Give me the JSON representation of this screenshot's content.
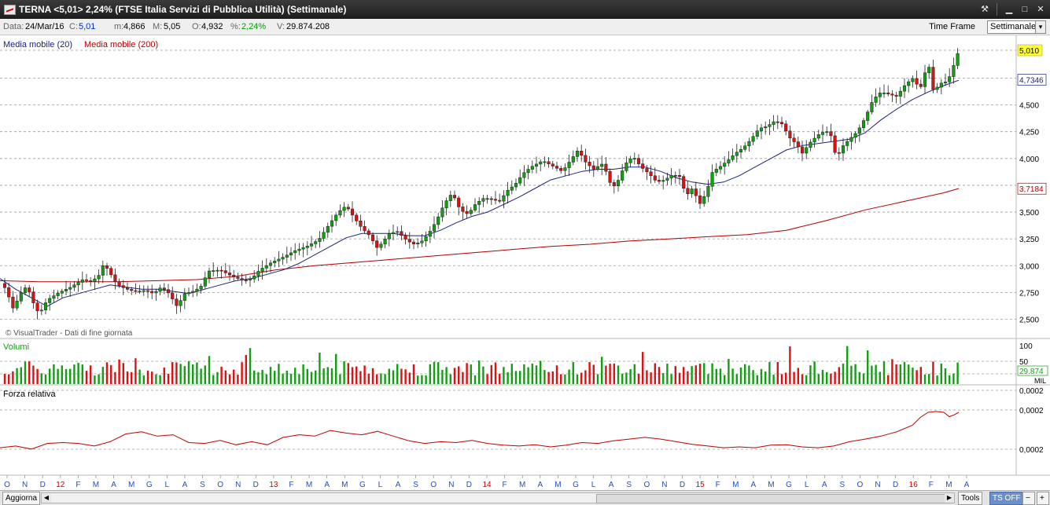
{
  "window": {
    "title": "TERNA <5,01> 2,24%  (FTSE Italia Servizi di Pubblica Utilità)  (Settimanale)"
  },
  "infobar": {
    "data_label": "Data:",
    "data_value": "24/Mar/16",
    "close_label": "C:",
    "close_value": "5,01",
    "min_label": "m:",
    "min_value": "4,866",
    "max_label": "M:",
    "max_value": "5,05",
    "open_label": "O:",
    "open_value": "4,932",
    "pct_label": "%:",
    "pct_value": "2,24%",
    "vol_label": "V:",
    "vol_value": "29.874.208",
    "timeframe_label": "Time Frame",
    "timeframe_value": "Settimanale"
  },
  "price_panel": {
    "legend_ma20": "Media mobile (20)",
    "legend_ma200": "Media mobile (200)",
    "watermark": "© VisualTrader - Dati di fine giornata",
    "price_axis": [
      "5,010",
      "4,7346",
      "4,500",
      "4,250",
      "4,000",
      "3,7184",
      "3,500",
      "3,250",
      "3,000",
      "2,750",
      "2,500"
    ],
    "last_price_label": "5,010",
    "ma20_label": "4,7346",
    "ma200_label": "3,7184"
  },
  "volume_panel": {
    "title": "Volumi",
    "axis": [
      "100",
      "50"
    ],
    "last_label": "29.874",
    "unit": "MIL"
  },
  "rs_panel": {
    "title": "Forza relativa",
    "axis": [
      "0,0002",
      "0,0002",
      "0,0002"
    ]
  },
  "x_axis": [
    "O",
    "N",
    "D",
    "12",
    "F",
    "M",
    "A",
    "M",
    "G",
    "L",
    "A",
    "S",
    "O",
    "N",
    "D",
    "13",
    "F",
    "M",
    "A",
    "M",
    "G",
    "L",
    "A",
    "S",
    "O",
    "N",
    "D",
    "14",
    "F",
    "M",
    "A",
    "M",
    "G",
    "L",
    "A",
    "S",
    "O",
    "N",
    "D",
    "15",
    "F",
    "M",
    "A",
    "M",
    "G",
    "L",
    "A",
    "S",
    "O",
    "N",
    "D",
    "16",
    "F",
    "M",
    "A"
  ],
  "footer": {
    "update_button": "Aggiorna",
    "tools_button": "Tools",
    "ts_button": "TS OFF"
  },
  "colors": {
    "up": "#10a010",
    "down": "#e01010",
    "ma20": "#1a237e",
    "ma200": "#b00000",
    "rs_line": "#c00000",
    "year_label": "#cc0000",
    "month_label": "#1f4fbf"
  },
  "chart_data": [
    {
      "type": "candlestick",
      "title": "TERNA (Settimanale)",
      "ylim": [
        2.4,
        5.1
      ],
      "price_points": [
        [
          0,
          2.84
        ],
        [
          8,
          2.78
        ],
        [
          16,
          2.6
        ],
        [
          24,
          2.7
        ],
        [
          30,
          2.8
        ],
        [
          36,
          2.78
        ],
        [
          44,
          2.62
        ],
        [
          50,
          2.55
        ],
        [
          60,
          2.68
        ],
        [
          75,
          2.75
        ],
        [
          90,
          2.8
        ],
        [
          105,
          2.87
        ],
        [
          115,
          2.85
        ],
        [
          125,
          2.9
        ],
        [
          132,
          3.02
        ],
        [
          140,
          2.93
        ],
        [
          148,
          2.83
        ],
        [
          155,
          2.8
        ],
        [
          165,
          2.77
        ],
        [
          175,
          2.76
        ],
        [
          185,
          2.77
        ],
        [
          195,
          2.74
        ],
        [
          205,
          2.8
        ],
        [
          215,
          2.74
        ],
        [
          225,
          2.62
        ],
        [
          235,
          2.74
        ],
        [
          245,
          2.76
        ],
        [
          255,
          2.8
        ],
        [
          265,
          2.95
        ],
        [
          280,
          2.96
        ],
        [
          295,
          2.9
        ],
        [
          310,
          2.86
        ],
        [
          320,
          2.88
        ],
        [
          330,
          2.96
        ],
        [
          345,
          3.03
        ],
        [
          360,
          3.08
        ],
        [
          375,
          3.14
        ],
        [
          390,
          3.18
        ],
        [
          405,
          3.24
        ],
        [
          418,
          3.38
        ],
        [
          430,
          3.5
        ],
        [
          440,
          3.56
        ],
        [
          450,
          3.45
        ],
        [
          460,
          3.35
        ],
        [
          470,
          3.28
        ],
        [
          480,
          3.16
        ],
        [
          495,
          3.3
        ],
        [
          505,
          3.32
        ],
        [
          515,
          3.25
        ],
        [
          525,
          3.2
        ],
        [
          535,
          3.22
        ],
        [
          545,
          3.3
        ],
        [
          555,
          3.42
        ],
        [
          565,
          3.58
        ],
        [
          575,
          3.68
        ],
        [
          585,
          3.52
        ],
        [
          595,
          3.48
        ],
        [
          605,
          3.58
        ],
        [
          615,
          3.63
        ],
        [
          625,
          3.62
        ],
        [
          635,
          3.6
        ],
        [
          645,
          3.7
        ],
        [
          655,
          3.76
        ],
        [
          665,
          3.86
        ],
        [
          675,
          3.92
        ],
        [
          690,
          3.98
        ],
        [
          705,
          3.92
        ],
        [
          715,
          3.88
        ],
        [
          725,
          3.98
        ],
        [
          735,
          4.08
        ],
        [
          745,
          3.96
        ],
        [
          755,
          3.9
        ],
        [
          765,
          3.95
        ],
        [
          772,
          3.86
        ],
        [
          778,
          3.72
        ],
        [
          785,
          3.78
        ],
        [
          795,
          3.95
        ],
        [
          805,
          4.02
        ],
        [
          815,
          3.92
        ],
        [
          825,
          3.86
        ],
        [
          835,
          3.78
        ],
        [
          845,
          3.8
        ],
        [
          855,
          3.85
        ],
        [
          865,
          3.83
        ],
        [
          872,
          3.65
        ],
        [
          880,
          3.72
        ],
        [
          890,
          3.58
        ],
        [
          898,
          3.68
        ],
        [
          906,
          3.88
        ],
        [
          915,
          3.92
        ],
        [
          925,
          3.98
        ],
        [
          935,
          4.05
        ],
        [
          945,
          4.1
        ],
        [
          955,
          4.18
        ],
        [
          965,
          4.28
        ],
        [
          975,
          4.3
        ],
        [
          985,
          4.35
        ],
        [
          995,
          4.32
        ],
        [
          1003,
          4.2
        ],
        [
          1012,
          4.14
        ],
        [
          1020,
          4.05
        ],
        [
          1030,
          4.15
        ],
        [
          1040,
          4.22
        ],
        [
          1050,
          4.26
        ],
        [
          1058,
          4.2
        ],
        [
          1063,
          4.0
        ],
        [
          1072,
          4.12
        ],
        [
          1080,
          4.18
        ],
        [
          1090,
          4.25
        ],
        [
          1100,
          4.38
        ],
        [
          1110,
          4.55
        ],
        [
          1120,
          4.62
        ],
        [
          1130,
          4.6
        ],
        [
          1140,
          4.58
        ],
        [
          1150,
          4.68
        ],
        [
          1160,
          4.75
        ],
        [
          1170,
          4.65
        ],
        [
          1180,
          4.9
        ],
        [
          1187,
          4.62
        ],
        [
          1195,
          4.7
        ],
        [
          1205,
          4.72
        ],
        [
          1213,
          4.88
        ],
        [
          1219,
          5.01
        ]
      ],
      "ma20_points": [
        [
          0,
          2.88
        ],
        [
          20,
          2.78
        ],
        [
          40,
          2.7
        ],
        [
          60,
          2.62
        ],
        [
          80,
          2.7
        ],
        [
          100,
          2.74
        ],
        [
          120,
          2.78
        ],
        [
          140,
          2.82
        ],
        [
          160,
          2.8
        ],
        [
          180,
          2.78
        ],
        [
          200,
          2.78
        ],
        [
          220,
          2.76
        ],
        [
          240,
          2.74
        ],
        [
          260,
          2.78
        ],
        [
          280,
          2.82
        ],
        [
          300,
          2.86
        ],
        [
          320,
          2.88
        ],
        [
          340,
          2.92
        ],
        [
          360,
          2.96
        ],
        [
          380,
          3.02
        ],
        [
          400,
          3.1
        ],
        [
          420,
          3.18
        ],
        [
          440,
          3.26
        ],
        [
          460,
          3.3
        ],
        [
          480,
          3.3
        ],
        [
          500,
          3.3
        ],
        [
          520,
          3.28
        ],
        [
          540,
          3.28
        ],
        [
          560,
          3.33
        ],
        [
          580,
          3.4
        ],
        [
          600,
          3.46
        ],
        [
          620,
          3.5
        ],
        [
          640,
          3.57
        ],
        [
          660,
          3.64
        ],
        [
          680,
          3.72
        ],
        [
          700,
          3.8
        ],
        [
          720,
          3.84
        ],
        [
          740,
          3.88
        ],
        [
          760,
          3.9
        ],
        [
          780,
          3.9
        ],
        [
          800,
          3.92
        ],
        [
          820,
          3.92
        ],
        [
          840,
          3.88
        ],
        [
          860,
          3.82
        ],
        [
          880,
          3.78
        ],
        [
          900,
          3.76
        ],
        [
          920,
          3.78
        ],
        [
          940,
          3.84
        ],
        [
          960,
          3.92
        ],
        [
          980,
          4.0
        ],
        [
          1000,
          4.08
        ],
        [
          1020,
          4.12
        ],
        [
          1040,
          4.14
        ],
        [
          1060,
          4.16
        ],
        [
          1080,
          4.18
        ],
        [
          1100,
          4.24
        ],
        [
          1120,
          4.36
        ],
        [
          1140,
          4.46
        ],
        [
          1160,
          4.55
        ],
        [
          1180,
          4.62
        ],
        [
          1200,
          4.68
        ],
        [
          1219,
          4.73
        ]
      ],
      "ma200_points": [
        [
          0,
          2.86
        ],
        [
          50,
          2.85
        ],
        [
          100,
          2.85
        ],
        [
          150,
          2.85
        ],
        [
          200,
          2.86
        ],
        [
          250,
          2.87
        ],
        [
          300,
          2.9
        ],
        [
          350,
          2.96
        ],
        [
          400,
          3.0
        ],
        [
          450,
          3.03
        ],
        [
          500,
          3.06
        ],
        [
          550,
          3.09
        ],
        [
          600,
          3.12
        ],
        [
          650,
          3.15
        ],
        [
          700,
          3.18
        ],
        [
          750,
          3.2
        ],
        [
          800,
          3.23
        ],
        [
          850,
          3.25
        ],
        [
          900,
          3.27
        ],
        [
          950,
          3.29
        ],
        [
          1000,
          3.33
        ],
        [
          1050,
          3.42
        ],
        [
          1100,
          3.52
        ],
        [
          1150,
          3.6
        ],
        [
          1200,
          3.68
        ],
        [
          1219,
          3.72
        ]
      ]
    },
    {
      "type": "bar",
      "title": "Volumi",
      "ylim": [
        0,
        100
      ],
      "last_value": 29.874
    },
    {
      "type": "line",
      "title": "Forza relativa",
      "points": [
        [
          0,
          0.18
        ],
        [
          20,
          0.22
        ],
        [
          40,
          0.15
        ],
        [
          60,
          0.28
        ],
        [
          80,
          0.3
        ],
        [
          100,
          0.28
        ],
        [
          120,
          0.22
        ],
        [
          140,
          0.32
        ],
        [
          160,
          0.5
        ],
        [
          180,
          0.55
        ],
        [
          200,
          0.45
        ],
        [
          220,
          0.48
        ],
        [
          240,
          0.3
        ],
        [
          260,
          0.28
        ],
        [
          280,
          0.35
        ],
        [
          300,
          0.25
        ],
        [
          320,
          0.32
        ],
        [
          340,
          0.25
        ],
        [
          360,
          0.42
        ],
        [
          380,
          0.48
        ],
        [
          400,
          0.45
        ],
        [
          420,
          0.58
        ],
        [
          440,
          0.52
        ],
        [
          460,
          0.48
        ],
        [
          480,
          0.56
        ],
        [
          500,
          0.45
        ],
        [
          520,
          0.34
        ],
        [
          540,
          0.28
        ],
        [
          560,
          0.32
        ],
        [
          580,
          0.3
        ],
        [
          600,
          0.35
        ],
        [
          620,
          0.28
        ],
        [
          640,
          0.24
        ],
        [
          660,
          0.22
        ],
        [
          680,
          0.25
        ],
        [
          700,
          0.2
        ],
        [
          720,
          0.24
        ],
        [
          740,
          0.3
        ],
        [
          760,
          0.28
        ],
        [
          780,
          0.34
        ],
        [
          800,
          0.38
        ],
        [
          820,
          0.42
        ],
        [
          840,
          0.38
        ],
        [
          860,
          0.32
        ],
        [
          880,
          0.26
        ],
        [
          900,
          0.22
        ],
        [
          920,
          0.18
        ],
        [
          940,
          0.2
        ],
        [
          960,
          0.18
        ],
        [
          980,
          0.24
        ],
        [
          1000,
          0.25
        ],
        [
          1020,
          0.2
        ],
        [
          1040,
          0.18
        ],
        [
          1060,
          0.22
        ],
        [
          1080,
          0.32
        ],
        [
          1100,
          0.38
        ],
        [
          1120,
          0.45
        ],
        [
          1140,
          0.55
        ],
        [
          1160,
          0.7
        ],
        [
          1170,
          0.88
        ],
        [
          1180,
          1.0
        ],
        [
          1190,
          1.02
        ],
        [
          1200,
          1.0
        ],
        [
          1207,
          0.9
        ],
        [
          1213,
          0.94
        ],
        [
          1219,
          1.0
        ]
      ]
    }
  ]
}
